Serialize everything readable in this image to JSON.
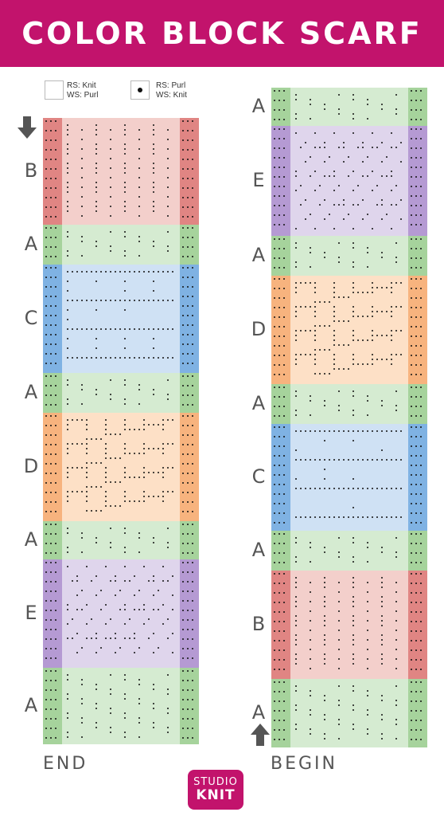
{
  "title": "COLOR BLOCK SCARF",
  "legend": [
    {
      "symbol": "blank",
      "rs": "RS: Knit",
      "ws": "WS: Purl"
    },
    {
      "symbol": "dot",
      "rs": "RS: Purl",
      "ws": "WS: Knit"
    }
  ],
  "colors": {
    "A": {
      "light": "#d5ebd1",
      "dark": "#a6d39c"
    },
    "B": {
      "light": "#f3cfcb",
      "dark": "#e08583"
    },
    "C": {
      "light": "#cfe1f4",
      "dark": "#7fb2e3"
    },
    "D": {
      "light": "#fde0c6",
      "dark": "#f7b37e"
    },
    "E": {
      "light": "#dfd5ec",
      "dark": "#b59ad3"
    },
    "banner": "#c2136c",
    "arrow": "#555555"
  },
  "left_column": {
    "label": "END",
    "blocks": [
      "B",
      "A",
      "C",
      "A",
      "D",
      "A",
      "E",
      "A"
    ]
  },
  "right_column": {
    "label": "BEGIN",
    "blocks": [
      "A",
      "E",
      "A",
      "D",
      "A",
      "C",
      "A",
      "B",
      "A"
    ]
  },
  "logo": {
    "line1": "STUDIO",
    "line2": "KNIT"
  }
}
